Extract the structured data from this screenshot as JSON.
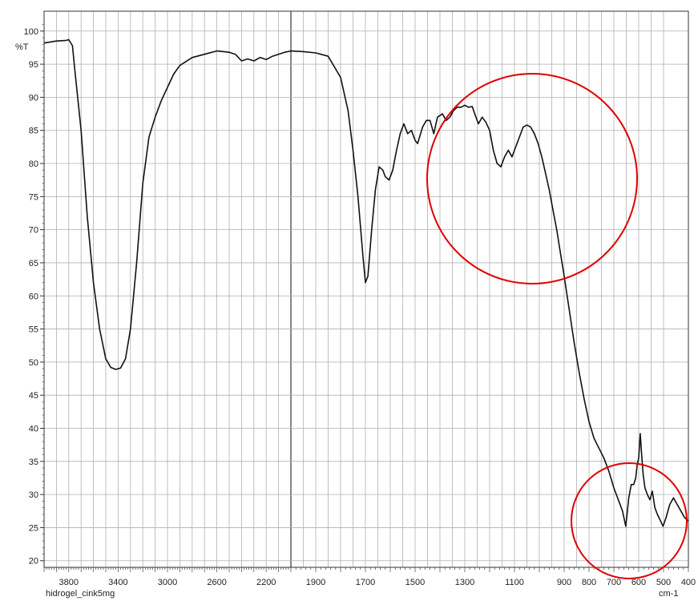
{
  "chart_data": {
    "type": "line",
    "ylabel": "%T",
    "xunit": "cm-1",
    "sample_label": "hidrogel_cink5mg",
    "xlim": [
      4000,
      400
    ],
    "ylim": [
      19,
      103
    ],
    "grid": true,
    "x_tick_labels": [
      "3800",
      "3400",
      "3000",
      "2600",
      "2200",
      "1900",
      "1700",
      "1500",
      "1300",
      "1100",
      "900",
      "800",
      "700",
      "600",
      "500",
      "400"
    ],
    "y_ticks": [
      20,
      25,
      30,
      35,
      40,
      45,
      50,
      55,
      60,
      65,
      70,
      75,
      80,
      85,
      90,
      95,
      100
    ],
    "series": [
      {
        "color": "#111111",
        "points": [
          [
            4000,
            98.2
          ],
          [
            3900,
            98.5
          ],
          [
            3820,
            98.6
          ],
          [
            3800,
            98.7
          ],
          [
            3770,
            97.8
          ],
          [
            3750,
            94
          ],
          [
            3700,
            85
          ],
          [
            3650,
            72
          ],
          [
            3600,
            62
          ],
          [
            3550,
            55
          ],
          [
            3500,
            50.5
          ],
          [
            3460,
            49.2
          ],
          [
            3420,
            48.9
          ],
          [
            3380,
            49.1
          ],
          [
            3340,
            50.5
          ],
          [
            3300,
            55
          ],
          [
            3250,
            65
          ],
          [
            3200,
            77
          ],
          [
            3150,
            84
          ],
          [
            3100,
            87
          ],
          [
            3050,
            89.5
          ],
          [
            3000,
            91.5
          ],
          [
            2950,
            93.5
          ],
          [
            2900,
            94.8
          ],
          [
            2800,
            96
          ],
          [
            2700,
            96.5
          ],
          [
            2600,
            97
          ],
          [
            2500,
            96.8
          ],
          [
            2450,
            96.5
          ],
          [
            2400,
            95.5
          ],
          [
            2350,
            95.8
          ],
          [
            2300,
            95.5
          ],
          [
            2250,
            96
          ],
          [
            2200,
            95.7
          ],
          [
            2150,
            96.2
          ],
          [
            2100,
            96.5
          ],
          [
            2050,
            96.8
          ],
          [
            2000,
            97
          ],
          [
            1950,
            96.9
          ],
          [
            1900,
            96.7
          ],
          [
            1850,
            96.2
          ],
          [
            1800,
            93
          ],
          [
            1770,
            88
          ],
          [
            1750,
            82
          ],
          [
            1730,
            75
          ],
          [
            1710,
            66
          ],
          [
            1700,
            62
          ],
          [
            1690,
            63
          ],
          [
            1675,
            70
          ],
          [
            1660,
            76
          ],
          [
            1645,
            79.5
          ],
          [
            1630,
            79
          ],
          [
            1620,
            78
          ],
          [
            1605,
            77.5
          ],
          [
            1590,
            79
          ],
          [
            1575,
            82
          ],
          [
            1560,
            84.5
          ],
          [
            1545,
            86
          ],
          [
            1530,
            84.5
          ],
          [
            1515,
            85
          ],
          [
            1500,
            83.5
          ],
          [
            1490,
            83
          ],
          [
            1470,
            85.5
          ],
          [
            1455,
            86.5
          ],
          [
            1440,
            86.5
          ],
          [
            1425,
            84.5
          ],
          [
            1410,
            87
          ],
          [
            1390,
            87.5
          ],
          [
            1375,
            86.5
          ],
          [
            1360,
            87
          ],
          [
            1345,
            88
          ],
          [
            1330,
            88.5
          ],
          [
            1315,
            88.5
          ],
          [
            1300,
            88.8
          ],
          [
            1285,
            88.5
          ],
          [
            1270,
            88.6
          ],
          [
            1260,
            87.5
          ],
          [
            1245,
            86
          ],
          [
            1230,
            87
          ],
          [
            1215,
            86.2
          ],
          [
            1200,
            85
          ],
          [
            1185,
            82
          ],
          [
            1170,
            80
          ],
          [
            1155,
            79.5
          ],
          [
            1140,
            81
          ],
          [
            1125,
            82
          ],
          [
            1110,
            81
          ],
          [
            1095,
            82.5
          ],
          [
            1080,
            84
          ],
          [
            1065,
            85.5
          ],
          [
            1050,
            85.8
          ],
          [
            1035,
            85.5
          ],
          [
            1020,
            84.5
          ],
          [
            1005,
            83
          ],
          [
            990,
            81
          ],
          [
            975,
            78.5
          ],
          [
            960,
            76
          ],
          [
            945,
            73
          ],
          [
            930,
            70
          ],
          [
            915,
            66.5
          ],
          [
            900,
            63
          ],
          [
            880,
            58
          ],
          [
            860,
            53
          ],
          [
            840,
            48.5
          ],
          [
            820,
            44.5
          ],
          [
            800,
            41
          ],
          [
            780,
            38.5
          ],
          [
            760,
            37
          ],
          [
            740,
            35.5
          ],
          [
            720,
            33.5
          ],
          [
            700,
            31
          ],
          [
            680,
            29
          ],
          [
            665,
            27.5
          ],
          [
            652,
            25.2
          ],
          [
            640,
            29.5
          ],
          [
            630,
            31.5
          ],
          [
            620,
            31.5
          ],
          [
            612,
            32.5
          ],
          [
            606,
            34.5
          ],
          [
            600,
            35.5
          ],
          [
            594,
            39.2
          ],
          [
            588,
            36
          ],
          [
            582,
            33
          ],
          [
            575,
            31
          ],
          [
            565,
            30
          ],
          [
            555,
            29.2
          ],
          [
            545,
            30.5
          ],
          [
            535,
            28
          ],
          [
            525,
            27
          ],
          [
            512,
            26
          ],
          [
            502,
            25.2
          ],
          [
            490,
            26.5
          ],
          [
            475,
            28.5
          ],
          [
            460,
            29.5
          ],
          [
            445,
            28.5
          ],
          [
            430,
            27.5
          ],
          [
            415,
            26.5
          ],
          [
            400,
            26
          ]
        ]
      }
    ],
    "highlights": [
      {
        "shape": "circle",
        "color": "#e00000"
      },
      {
        "shape": "circle",
        "color": "#e00000"
      }
    ]
  }
}
